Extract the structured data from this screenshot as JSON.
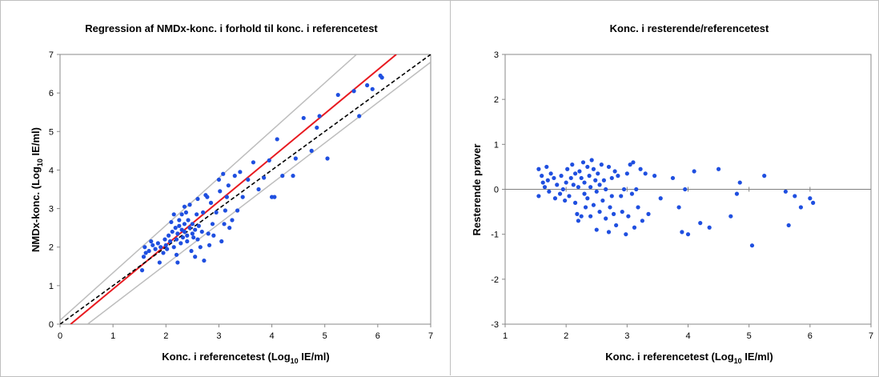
{
  "chart_data": [
    {
      "type": "scatter",
      "title": "Regression af NMDx-konc. i forhold til konc. i referencetest",
      "xlabel": {
        "main": "Konc. i referencetest (Log",
        "sub": "10",
        "tail": " IE/ml)"
      },
      "ylabel": {
        "main": "NMDx-konc. (Log",
        "sub": "10",
        "tail": " IE/ml)"
      },
      "xlim": [
        0,
        7
      ],
      "ylim": [
        0,
        7
      ],
      "xticks": [
        "0",
        "1",
        "2",
        "3",
        "4",
        "5",
        "6",
        "7"
      ],
      "yticks": [
        "0",
        "1",
        "2",
        "3",
        "4",
        "5",
        "6",
        "7"
      ],
      "grid": false,
      "colors": {
        "points": "#1f4fe0",
        "regression": "#e8191f",
        "identity": "#000000",
        "limits": "#bdbdbd"
      },
      "lines": [
        {
          "name": "regression",
          "x": [
            0.2,
            6.35
          ],
          "y": [
            0,
            7
          ],
          "style": "solid",
          "color": "#e8191f"
        },
        {
          "name": "identity",
          "x": [
            0,
            7
          ],
          "y": [
            0,
            7
          ],
          "style": "dashed",
          "color": "#000000"
        },
        {
          "name": "upper-limit",
          "x": [
            0,
            5.6
          ],
          "y": [
            0.1,
            7
          ],
          "style": "solid",
          "color": "#bdbdbd"
        },
        {
          "name": "lower-limit",
          "x": [
            0.52,
            7
          ],
          "y": [
            0,
            6.8
          ],
          "style": "solid",
          "color": "#bdbdbd"
        }
      ],
      "points": [
        [
          1.55,
          1.4
        ],
        [
          1.58,
          1.75
        ],
        [
          1.6,
          2.0
        ],
        [
          1.62,
          1.85
        ],
        [
          1.68,
          1.9
        ],
        [
          1.72,
          2.15
        ],
        [
          1.75,
          2.05
        ],
        [
          1.8,
          1.95
        ],
        [
          1.85,
          2.1
        ],
        [
          1.88,
          1.6
        ],
        [
          1.9,
          2.0
        ],
        [
          1.95,
          1.85
        ],
        [
          1.98,
          2.2
        ],
        [
          2.0,
          2.05
        ],
        [
          2.02,
          1.95
        ],
        [
          2.05,
          2.3
        ],
        [
          2.08,
          2.15
        ],
        [
          2.1,
          2.65
        ],
        [
          2.12,
          2.4
        ],
        [
          2.15,
          2.0
        ],
        [
          2.18,
          2.5
        ],
        [
          2.2,
          1.8
        ],
        [
          2.2,
          2.2
        ],
        [
          2.22,
          2.35
        ],
        [
          2.22,
          1.6
        ],
        [
          2.25,
          2.7
        ],
        [
          2.25,
          2.55
        ],
        [
          2.28,
          2.1
        ],
        [
          2.3,
          2.45
        ],
        [
          2.3,
          2.85
        ],
        [
          2.32,
          2.25
        ],
        [
          2.35,
          2.6
        ],
        [
          2.35,
          2.4
        ],
        [
          2.38,
          2.9
        ],
        [
          2.4,
          2.3
        ],
        [
          2.4,
          2.15
        ],
        [
          2.42,
          2.7
        ],
        [
          2.45,
          2.5
        ],
        [
          2.45,
          3.1
        ],
        [
          2.48,
          1.9
        ],
        [
          2.5,
          2.35
        ],
        [
          2.5,
          2.6
        ],
        [
          2.52,
          2.25
        ],
        [
          2.55,
          2.45
        ],
        [
          2.55,
          1.75
        ],
        [
          2.58,
          2.85
        ],
        [
          2.6,
          2.2
        ],
        [
          2.62,
          2.55
        ],
        [
          2.65,
          2.0
        ],
        [
          2.68,
          2.4
        ],
        [
          2.7,
          2.9
        ],
        [
          2.72,
          1.65
        ],
        [
          2.75,
          3.35
        ],
        [
          2.78,
          3.3
        ],
        [
          2.8,
          2.35
        ],
        [
          2.82,
          2.05
        ],
        [
          2.85,
          3.15
        ],
        [
          2.88,
          2.6
        ],
        [
          2.9,
          2.3
        ],
        [
          2.95,
          2.9
        ],
        [
          3.0,
          3.75
        ],
        [
          3.02,
          3.45
        ],
        [
          3.05,
          2.15
        ],
        [
          3.08,
          3.9
        ],
        [
          3.1,
          2.6
        ],
        [
          3.12,
          2.95
        ],
        [
          3.15,
          3.3
        ],
        [
          3.18,
          3.6
        ],
        [
          3.2,
          2.5
        ],
        [
          3.25,
          2.7
        ],
        [
          3.3,
          3.85
        ],
        [
          3.35,
          2.95
        ],
        [
          3.4,
          3.95
        ],
        [
          3.45,
          3.3
        ],
        [
          3.55,
          3.75
        ],
        [
          3.65,
          4.2
        ],
        [
          3.75,
          3.5
        ],
        [
          3.85,
          3.8
        ],
        [
          3.95,
          4.25
        ],
        [
          4.0,
          3.3
        ],
        [
          4.05,
          3.3
        ],
        [
          4.1,
          4.8
        ],
        [
          4.2,
          3.85
        ],
        [
          4.4,
          3.85
        ],
        [
          4.45,
          4.3
        ],
        [
          4.6,
          5.35
        ],
        [
          4.75,
          4.5
        ],
        [
          4.85,
          5.1
        ],
        [
          4.9,
          5.4
        ],
        [
          5.05,
          4.3
        ],
        [
          5.25,
          5.95
        ],
        [
          5.55,
          6.05
        ],
        [
          5.65,
          5.4
        ],
        [
          5.8,
          6.2
        ],
        [
          5.9,
          6.1
        ],
        [
          6.05,
          6.45
        ],
        [
          6.08,
          6.4
        ],
        [
          2.15,
          2.85
        ],
        [
          2.35,
          3.05
        ],
        [
          2.6,
          3.25
        ]
      ]
    },
    {
      "type": "scatter",
      "title": "Konc. i resterende/referencetest",
      "xlabel": {
        "main": "Konc. i referencetest (Log",
        "sub": "10",
        "tail": " IE/ml)"
      },
      "ylabel": {
        "main": "Resterende prøver",
        "sub": "",
        "tail": ""
      },
      "xlim": [
        1,
        7
      ],
      "ylim": [
        -3,
        3
      ],
      "xticks": [
        "1",
        "2",
        "3",
        "4",
        "5",
        "6",
        "7"
      ],
      "yticks": [
        "-3",
        "-2",
        "-1",
        "0",
        "1",
        "2",
        "3"
      ],
      "grid": false,
      "colors": {
        "points": "#1f4fe0",
        "zero_line": "#808080"
      },
      "points": [
        [
          1.55,
          0.45
        ],
        [
          1.55,
          -0.15
        ],
        [
          1.6,
          0.3
        ],
        [
          1.62,
          0.15
        ],
        [
          1.65,
          0.05
        ],
        [
          1.68,
          0.5
        ],
        [
          1.7,
          0.2
        ],
        [
          1.72,
          -0.05
        ],
        [
          1.75,
          0.35
        ],
        [
          1.8,
          0.25
        ],
        [
          1.82,
          -0.2
        ],
        [
          1.85,
          0.1
        ],
        [
          1.9,
          -0.1
        ],
        [
          1.92,
          0.3
        ],
        [
          1.95,
          0.0
        ],
        [
          1.98,
          -0.25
        ],
        [
          2.0,
          0.15
        ],
        [
          2.02,
          0.45
        ],
        [
          2.05,
          -0.15
        ],
        [
          2.08,
          0.25
        ],
        [
          2.1,
          0.55
        ],
        [
          2.12,
          0.1
        ],
        [
          2.15,
          -0.3
        ],
        [
          2.15,
          0.35
        ],
        [
          2.18,
          -0.55
        ],
        [
          2.2,
          -0.7
        ],
        [
          2.2,
          0.05
        ],
        [
          2.22,
          0.4
        ],
        [
          2.25,
          -0.6
        ],
        [
          2.25,
          0.25
        ],
        [
          2.28,
          0.6
        ],
        [
          2.3,
          -0.1
        ],
        [
          2.3,
          0.15
        ],
        [
          2.32,
          -0.4
        ],
        [
          2.35,
          0.5
        ],
        [
          2.35,
          -0.2
        ],
        [
          2.38,
          0.3
        ],
        [
          2.4,
          -0.6
        ],
        [
          2.4,
          0.05
        ],
        [
          2.42,
          0.65
        ],
        [
          2.45,
          -0.35
        ],
        [
          2.45,
          0.45
        ],
        [
          2.48,
          0.2
        ],
        [
          2.5,
          -0.9
        ],
        [
          2.5,
          -0.05
        ],
        [
          2.52,
          0.35
        ],
        [
          2.55,
          -0.5
        ],
        [
          2.55,
          0.1
        ],
        [
          2.58,
          0.55
        ],
        [
          2.6,
          -0.25
        ],
        [
          2.62,
          0.2
        ],
        [
          2.65,
          -0.65
        ],
        [
          2.65,
          0.0
        ],
        [
          2.7,
          -0.95
        ],
        [
          2.7,
          0.5
        ],
        [
          2.72,
          -0.4
        ],
        [
          2.75,
          -0.15
        ],
        [
          2.75,
          0.25
        ],
        [
          2.78,
          -0.55
        ],
        [
          2.8,
          0.4
        ],
        [
          2.82,
          -0.8
        ],
        [
          2.85,
          0.3
        ],
        [
          2.9,
          -0.15
        ],
        [
          2.92,
          -0.5
        ],
        [
          2.95,
          0.0
        ],
        [
          2.98,
          -1.0
        ],
        [
          3.0,
          0.35
        ],
        [
          3.02,
          -0.6
        ],
        [
          3.05,
          0.55
        ],
        [
          3.08,
          -0.1
        ],
        [
          3.1,
          0.6
        ],
        [
          3.12,
          -0.85
        ],
        [
          3.15,
          0.0
        ],
        [
          3.18,
          -0.4
        ],
        [
          3.22,
          0.45
        ],
        [
          3.25,
          -0.7
        ],
        [
          3.3,
          0.35
        ],
        [
          3.35,
          -0.55
        ],
        [
          3.45,
          0.3
        ],
        [
          3.55,
          -0.2
        ],
        [
          3.75,
          0.25
        ],
        [
          3.85,
          -0.4
        ],
        [
          3.9,
          -0.95
        ],
        [
          3.95,
          -0.0
        ],
        [
          4.0,
          -1.0
        ],
        [
          4.1,
          0.4
        ],
        [
          4.2,
          -0.75
        ],
        [
          4.35,
          -0.85
        ],
        [
          4.5,
          0.45
        ],
        [
          4.7,
          -0.6
        ],
        [
          4.8,
          -0.1
        ],
        [
          4.85,
          0.15
        ],
        [
          5.05,
          -1.25
        ],
        [
          5.25,
          0.3
        ],
        [
          5.6,
          -0.05
        ],
        [
          5.65,
          -0.8
        ],
        [
          5.75,
          -0.15
        ],
        [
          5.85,
          -0.4
        ],
        [
          6.0,
          -0.2
        ],
        [
          6.05,
          -0.3
        ]
      ]
    }
  ]
}
